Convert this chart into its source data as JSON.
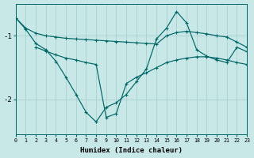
{
  "background_color": "#c8e8e8",
  "grid_color": "#a8d0d0",
  "line_color": "#006666",
  "x_ticks": [
    0,
    1,
    2,
    3,
    4,
    5,
    6,
    7,
    8,
    9,
    10,
    11,
    12,
    13,
    14,
    15,
    16,
    17,
    18,
    19,
    20,
    21,
    22,
    23
  ],
  "y_ticks": [
    -1,
    -2
  ],
  "xlim": [
    0,
    23
  ],
  "ylim": [
    -2.55,
    -0.5
  ],
  "xlabel": "Humidex (Indice chaleur)",
  "series1_x": [
    0,
    1,
    2,
    3,
    4,
    5,
    6,
    7,
    8,
    9,
    10,
    11,
    12,
    13,
    14,
    15,
    16,
    17,
    18,
    19,
    20,
    21,
    22,
    23
  ],
  "series1_y": [
    -0.72,
    -0.88,
    -0.96,
    -1.0,
    -1.02,
    -1.04,
    -1.05,
    -1.06,
    -1.07,
    -1.08,
    -1.09,
    -1.1,
    -1.11,
    -1.12,
    -1.13,
    -1.0,
    -0.95,
    -0.93,
    -0.95,
    -0.97,
    -1.0,
    -1.02,
    -1.1,
    -1.18
  ],
  "series2_x": [
    0,
    1,
    2,
    3,
    4,
    5,
    6,
    7,
    8,
    9,
    10,
    11,
    12,
    13,
    14,
    15,
    16,
    17,
    18,
    19,
    20,
    21,
    22,
    23
  ],
  "series2_y": [
    -0.72,
    -0.9,
    -1.12,
    -1.22,
    -1.4,
    -1.65,
    -1.92,
    -2.2,
    -2.35,
    -2.12,
    -2.05,
    -1.92,
    -1.72,
    -1.52,
    -1.05,
    -0.88,
    -0.62,
    -0.8,
    -1.22,
    -1.32,
    -1.38,
    -1.42,
    -1.18,
    -1.25
  ],
  "series3_x": [
    2,
    3,
    4,
    5,
    6,
    7,
    8,
    9,
    10,
    11,
    12,
    13,
    14,
    15,
    16,
    17,
    18,
    19,
    20,
    21,
    22,
    23
  ],
  "series3_y": [
    -1.18,
    -1.24,
    -1.3,
    -1.35,
    -1.38,
    -1.42,
    -1.45,
    -2.28,
    -2.22,
    -1.75,
    -1.65,
    -1.58,
    -1.5,
    -1.42,
    -1.38,
    -1.35,
    -1.33,
    -1.33,
    -1.35,
    -1.38,
    -1.42,
    -1.45
  ]
}
